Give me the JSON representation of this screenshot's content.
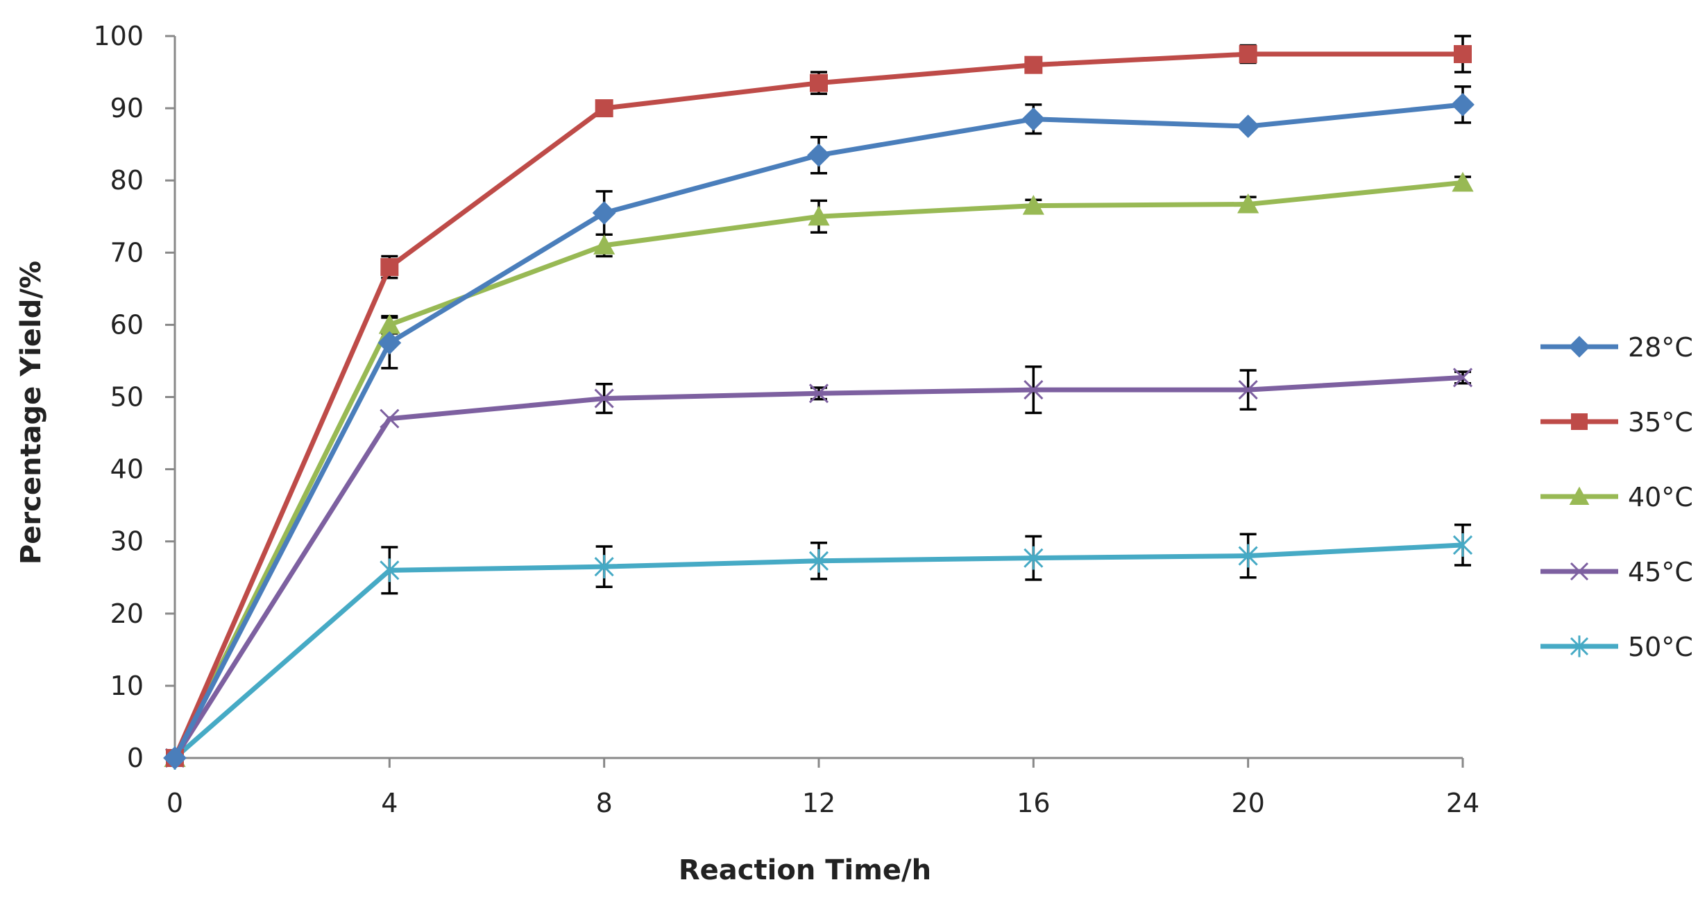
{
  "chart_data": {
    "type": "line",
    "xlabel": "Reaction Time/h",
    "ylabel": "Percentage Yield/%",
    "x": [
      0,
      4,
      8,
      12,
      16,
      20,
      24
    ],
    "xlim": [
      0,
      24
    ],
    "ylim": [
      0,
      100
    ],
    "x_ticks": [
      0,
      4,
      8,
      12,
      16,
      20,
      24
    ],
    "y_ticks": [
      0,
      10,
      20,
      30,
      40,
      50,
      60,
      70,
      80,
      90,
      100
    ],
    "grid": false,
    "legend": "right",
    "series": [
      {
        "name": "28°C",
        "color": "#4a7ebb",
        "marker": "diamond",
        "values": [
          0,
          57.5,
          75.5,
          83.5,
          88.5,
          87.5,
          90.5
        ],
        "errors": [
          0,
          3.5,
          3,
          2.5,
          2,
          0,
          2.5
        ]
      },
      {
        "name": "35°C",
        "color": "#be4b48",
        "marker": "square",
        "values": [
          0,
          68,
          90,
          93.5,
          96,
          97.5,
          97.5
        ],
        "errors": [
          0,
          1.5,
          0.5,
          1.5,
          1,
          1.2,
          2.5
        ]
      },
      {
        "name": "40°C",
        "color": "#98b954",
        "marker": "triangle",
        "values": [
          0,
          60,
          71,
          75,
          76.5,
          76.7,
          79.7
        ],
        "errors": [
          0,
          1.2,
          1.5,
          2.2,
          0.8,
          1,
          0.8
        ]
      },
      {
        "name": "45°C",
        "color": "#7d60a0",
        "marker": "x",
        "values": [
          0,
          47,
          49.8,
          50.5,
          51,
          51,
          52.7
        ],
        "errors": [
          0,
          0,
          2,
          0.8,
          3.2,
          2.7,
          0.8
        ]
      },
      {
        "name": "50°C",
        "color": "#46aac5",
        "marker": "star",
        "values": [
          0,
          26,
          26.5,
          27.3,
          27.7,
          28,
          29.5
        ],
        "errors": [
          0,
          3.2,
          2.8,
          2.5,
          3,
          3,
          2.8
        ]
      }
    ]
  }
}
